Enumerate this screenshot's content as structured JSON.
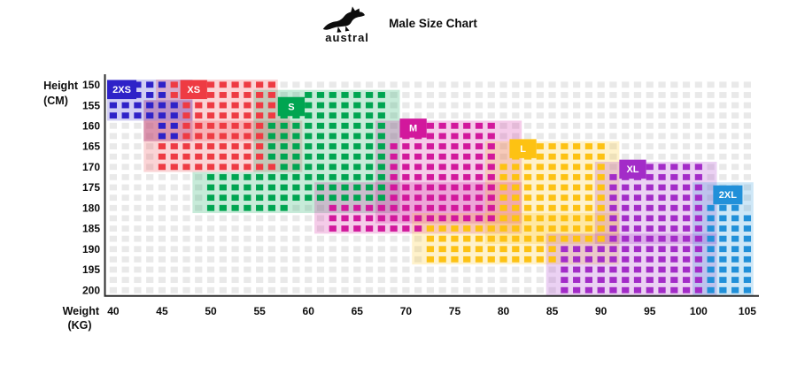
{
  "header": {
    "brand": "austral",
    "title": "Male Size Chart"
  },
  "chart_data": {
    "type": "heatmap",
    "title": "Male Size Chart",
    "xlabel": "Weight (KG)",
    "ylabel": "Height (CM)",
    "xlabel_lines": [
      "Weight",
      "(KG)"
    ],
    "ylabel_lines": [
      "Height",
      "(CM)"
    ],
    "x_ticks": [
      "40",
      "45",
      "50",
      "55",
      "60",
      "65",
      "70",
      "75",
      "80",
      "85",
      "90",
      "95",
      "100",
      "105"
    ],
    "y_ticks": [
      "150",
      "155",
      "160",
      "165",
      "170",
      "175",
      "180",
      "185",
      "190",
      "195",
      "200"
    ],
    "grid": {
      "cols": 53,
      "rows": 21,
      "weight_start_kg": 40,
      "height_start_cm": 150,
      "kg_per_col": 1.25,
      "cm_per_row": 2.5,
      "empty_square_color": "#e9e9e9",
      "tint_opacity": 0.22,
      "axis_color": "#2b2b2b",
      "text_color": "#0d0d0d"
    },
    "sizes": [
      {
        "label": "2XS",
        "color": "#2e22c8",
        "weight_range_kg": [
          40,
          47.5
        ],
        "height_range_cm": [
          150,
          165
        ],
        "label_box": {
          "c": 0,
          "r": 0.05,
          "w": 2.4,
          "h": 1.85
        },
        "cells": [
          [
            0,
            0,
            4,
            1
          ],
          [
            0,
            2,
            5,
            3
          ],
          [
            4,
            4,
            5,
            5
          ]
        ],
        "tint": [
          [
            0,
            0,
            6,
            3
          ],
          [
            3,
            2,
            6,
            5
          ]
        ]
      },
      {
        "label": "XS",
        "color": "#ee3b43",
        "weight_range_kg": [
          45,
          57.5
        ],
        "height_range_cm": [
          150,
          172.5
        ],
        "label_box": {
          "c": 6,
          "r": 0.05,
          "w": 2.2,
          "h": 1.85
        },
        "cells": [
          [
            5,
            0,
            13,
            1
          ],
          [
            6,
            2,
            13,
            3
          ],
          [
            6,
            4,
            12,
            5
          ],
          [
            4,
            6,
            12,
            7
          ],
          [
            4,
            8,
            13,
            8
          ]
        ],
        "tint": [
          [
            4,
            0,
            13,
            1
          ],
          [
            3,
            2,
            14,
            5
          ],
          [
            3,
            4,
            15,
            8
          ]
        ]
      },
      {
        "label": "S",
        "color": "#00a551",
        "weight_range_kg": [
          50,
          68.75
        ],
        "height_range_cm": [
          152.5,
          182.5
        ],
        "label_box": {
          "c": 14,
          "r": 1.7,
          "w": 2.2,
          "h": 1.85
        },
        "cells": [
          [
            16,
            1,
            22,
            1
          ],
          [
            14,
            2,
            22,
            3
          ],
          [
            13,
            4,
            22,
            7
          ],
          [
            14,
            8,
            22,
            8
          ],
          [
            8,
            9,
            22,
            11
          ],
          [
            8,
            12,
            14,
            12
          ]
        ],
        "tint": [
          [
            12,
            1,
            23,
            8
          ],
          [
            7,
            9,
            23,
            12
          ]
        ]
      },
      {
        "label": "M",
        "color": "#d2189c",
        "weight_range_kg": [
          62.5,
          80
        ],
        "height_range_cm": [
          160,
          187.5
        ],
        "label_box": {
          "c": 24,
          "r": 3.8,
          "w": 2.2,
          "h": 1.85
        },
        "cells": [
          [
            24,
            4,
            31,
            5
          ],
          [
            23,
            6,
            31,
            11
          ],
          [
            18,
            12,
            31,
            13
          ],
          [
            18,
            14,
            25,
            14
          ]
        ],
        "tint": [
          [
            22,
            4,
            33,
            13
          ],
          [
            17,
            10,
            33,
            14
          ]
        ]
      },
      {
        "label": "L",
        "color": "#fdc213",
        "weight_range_kg": [
          72.5,
          91.25
        ],
        "height_range_cm": [
          165,
          195
        ],
        "label_box": {
          "c": 33,
          "r": 5.8,
          "w": 2.2,
          "h": 1.85
        },
        "cells": [
          [
            33,
            6,
            40,
            7
          ],
          [
            32,
            8,
            40,
            13
          ],
          [
            26,
            14,
            40,
            15
          ],
          [
            26,
            16,
            36,
            17
          ]
        ],
        "tint": [
          [
            31,
            6,
            41,
            15
          ],
          [
            25,
            13,
            41,
            17
          ]
        ]
      },
      {
        "label": "XL",
        "color": "#a32cc8",
        "weight_range_kg": [
          86.25,
          101.25
        ],
        "height_range_cm": [
          170,
          200
        ],
        "label_box": {
          "c": 42,
          "r": 7.8,
          "w": 2.2,
          "h": 1.85
        },
        "cells": [
          [
            42,
            8,
            48,
            8
          ],
          [
            41,
            9,
            48,
            15
          ],
          [
            37,
            16,
            48,
            20
          ]
        ],
        "tint": [
          [
            40,
            8,
            49,
            15
          ],
          [
            36,
            15,
            49,
            20
          ]
        ]
      },
      {
        "label": "2XL",
        "color": "#2190d9",
        "weight_range_kg": [
          101.25,
          105
        ],
        "height_range_cm": [
          175,
          200
        ],
        "label_box": {
          "c": 49.7,
          "r": 10.3,
          "w": 2.4,
          "h": 1.85
        },
        "cells": [
          [
            49,
            12,
            51,
            12
          ],
          [
            49,
            13,
            52,
            20
          ]
        ],
        "tint": [
          [
            48,
            10,
            52,
            20
          ]
        ]
      }
    ]
  }
}
